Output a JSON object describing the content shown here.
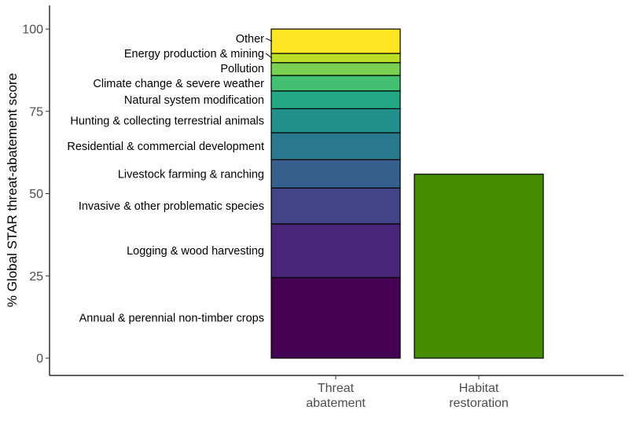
{
  "chart_data": {
    "type": "bar",
    "stacked": true,
    "title": "",
    "xlabel": "",
    "ylabel": "% Global STAR threat-abatement score",
    "ylim": [
      0,
      100
    ],
    "yticks": [
      0,
      25,
      50,
      75,
      100
    ],
    "grid": false,
    "categories": [
      {
        "line1": "Threat",
        "line2": "abatement"
      },
      {
        "line1": "Habitat",
        "line2": "restoration"
      }
    ],
    "stack": [
      {
        "name": "Annual & perennial non-timber crops",
        "value": 24.5,
        "color": "#440154"
      },
      {
        "name": "Logging & wood harvesting",
        "value": 16.3,
        "color": "#482576"
      },
      {
        "name": "Invasive & other problematic species",
        "value": 10.9,
        "color": "#414487"
      },
      {
        "name": "Livestock farming & ranching",
        "value": 8.6,
        "color": "#35608D"
      },
      {
        "name": "Residential & commercial development",
        "value": 8.2,
        "color": "#2A788E"
      },
      {
        "name": "Hunting & collecting terrestrial animals",
        "value": 7.3,
        "color": "#21908C"
      },
      {
        "name": "Natural system modification",
        "value": 5.4,
        "color": "#22A884"
      },
      {
        "name": "Climate change & severe weather",
        "value": 4.7,
        "color": "#43BF71"
      },
      {
        "name": "Pollution",
        "value": 3.9,
        "color": "#7AD151"
      },
      {
        "name": "Energy production & mining",
        "value": 2.8,
        "color": "#BBDF27"
      },
      {
        "name": "Other",
        "value": 7.4,
        "color": "#FDE725"
      }
    ],
    "restoration": {
      "value": 55.9,
      "color": "#448C00"
    }
  }
}
